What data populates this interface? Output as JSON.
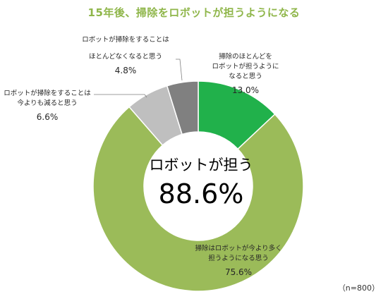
{
  "title": "15年後、掃除をロボットが担うようになる",
  "sample_note": "（n=800）",
  "center": {
    "label": "ロボットが担う",
    "value": "88.6%"
  },
  "colors": {
    "accent_green": "#21b14b",
    "light_green": "#9bbb59",
    "gray_light": "#bfbfbf",
    "gray_dark": "#808080",
    "title": "#8fb64a"
  },
  "labels": [
    {
      "line1": "掃除のほとんどを",
      "line2": "ロボットが担うように",
      "line3": "なると思う",
      "pct": "13.0%"
    },
    {
      "line1": "掃除はロボットが今より多く",
      "line2": "担うようになる思う",
      "pct": "75.6%"
    },
    {
      "line1": "ロボットが掃除をすることは",
      "line2": "今よりも減ると思う",
      "pct": "6.6%"
    },
    {
      "line1": "ロボットが掃除をすることは",
      "line2": "ほとんどなくなると思う",
      "pct": "4.8%"
    }
  ],
  "chart_data": {
    "type": "pie",
    "subtype": "donut",
    "title": "15年後、掃除をロボットが担うようになる",
    "categories": [
      "掃除のほとんどをロボットが担うようになると思う",
      "掃除はロボットが今より多く担うようになる思う",
      "ロボットが掃除をすることは今よりも減ると思う",
      "ロボットが掃除をすることはほとんどなくなると思う"
    ],
    "values": [
      13.0,
      75.6,
      6.6,
      4.8
    ],
    "colors": [
      "#21b14b",
      "#9bbb59",
      "#bfbfbf",
      "#808080"
    ],
    "center_label": "ロボットが担う 88.6%",
    "n": 800
  }
}
